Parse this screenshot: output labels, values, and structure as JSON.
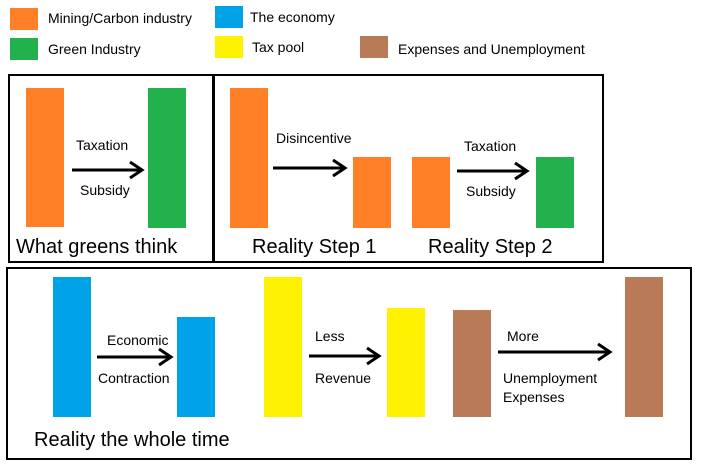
{
  "colors": {
    "mining": "#ff7f27",
    "economy": "#00a2e8",
    "green": "#22b14c",
    "tax": "#fff200",
    "expenses": "#b97a57"
  },
  "legend": {
    "mining": "Mining/Carbon industry",
    "economy": "The economy",
    "green": "Green Industry",
    "tax": "Tax pool",
    "expenses": "Expenses and Unemployment"
  },
  "panel1": {
    "caption": "What greens think",
    "arrow_top": "Taxation",
    "arrow_bottom": "Subsidy"
  },
  "panel2": {
    "step1_caption": "Reality Step 1",
    "step2_caption": "Reality Step 2",
    "arrow1_top": "Disincentive",
    "arrow2_top": "Taxation",
    "arrow2_bottom": "Subsidy"
  },
  "panel3": {
    "caption": "Reality the whole time",
    "arrow1_top": "Economic",
    "arrow1_bottom": "Contraction",
    "arrow2_top": "Less",
    "arrow2_bottom": "Revenue",
    "arrow3_top": "More",
    "arrow3_bottom_1": "Unemployment",
    "arrow3_bottom_2": "Expenses"
  }
}
